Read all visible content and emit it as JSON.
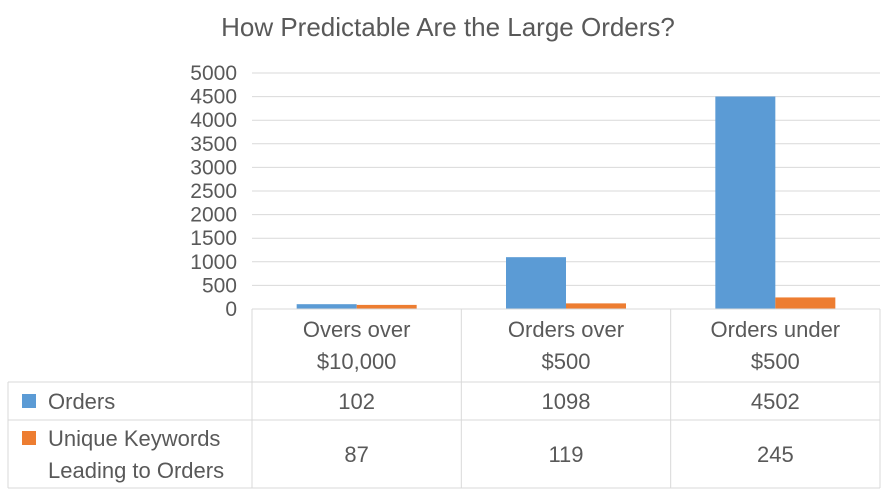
{
  "chart_data": {
    "type": "bar",
    "title": "How Predictable Are the Large Orders?",
    "categories": [
      [
        "Overs over",
        "$10,000"
      ],
      [
        "Orders over",
        "$500"
      ],
      [
        "Orders under",
        "$500"
      ]
    ],
    "series": [
      {
        "name": "Orders",
        "legend_lines": [
          "Orders"
        ],
        "color": "#5B9BD5",
        "values": [
          102,
          1098,
          4502
        ]
      },
      {
        "name": "Unique Keywords Leading to Orders",
        "legend_lines": [
          "Unique Keywords",
          "Leading to Orders"
        ],
        "color": "#ED7D31",
        "values": [
          87,
          119,
          245
        ]
      }
    ],
    "yticks": [
      "0",
      "500",
      "1000",
      "1500",
      "2000",
      "2500",
      "3000",
      "3500",
      "4000",
      "4500",
      "5000"
    ],
    "ylim": [
      0,
      5000
    ],
    "grid": true,
    "data_table": true,
    "xlabel": "",
    "ylabel": ""
  }
}
